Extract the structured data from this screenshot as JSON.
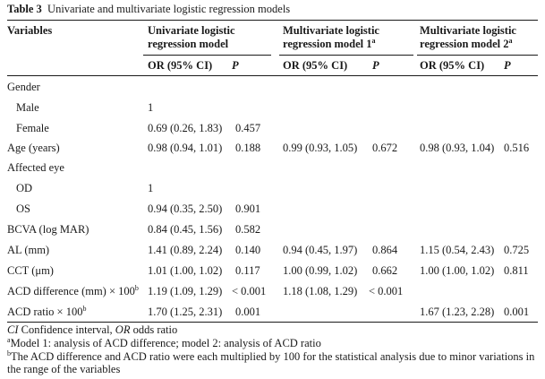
{
  "caption": {
    "label": "Table 3",
    "title": "Univariate and multivariate logistic regression models"
  },
  "headers": {
    "variables": "Variables",
    "groups": [
      {
        "line1": "Univariate logistic",
        "line2": "regression model",
        "sup": ""
      },
      {
        "line1": "Multivariate logistic",
        "line2": "regression model 1",
        "sup": "a"
      },
      {
        "line1": "Multivariate logistic",
        "line2": "regression model 2",
        "sup": "a"
      }
    ],
    "or_label": "OR (95% CI)",
    "p_label": "P"
  },
  "rows": [
    {
      "variable": "Gender",
      "sup": "",
      "u_or": "",
      "u_p": "",
      "m1_or": "",
      "m1_p": "",
      "m2_or": "",
      "m2_p": ""
    },
    {
      "variable": "Male",
      "sup": "",
      "u_or": "1",
      "u_p": "",
      "m1_or": "",
      "m1_p": "",
      "m2_or": "",
      "m2_p": ""
    },
    {
      "variable": "Female",
      "sup": "",
      "u_or": "0.69 (0.26, 1.83)",
      "u_p": "0.457",
      "m1_or": "",
      "m1_p": "",
      "m2_or": "",
      "m2_p": ""
    },
    {
      "variable": "Age (years)",
      "sup": "",
      "u_or": "0.98 (0.94, 1.01)",
      "u_p": "0.188",
      "m1_or": "0.99 (0.93, 1.05)",
      "m1_p": "0.672",
      "m2_or": "0.98 (0.93, 1.04)",
      "m2_p": "0.516"
    },
    {
      "variable": "Affected eye",
      "sup": "",
      "u_or": "",
      "u_p": "",
      "m1_or": "",
      "m1_p": "",
      "m2_or": "",
      "m2_p": ""
    },
    {
      "variable": "OD",
      "sup": "",
      "u_or": "1",
      "u_p": "",
      "m1_or": "",
      "m1_p": "",
      "m2_or": "",
      "m2_p": ""
    },
    {
      "variable": "OS",
      "sup": "",
      "u_or": "0.94 (0.35, 2.50)",
      "u_p": "0.901",
      "m1_or": "",
      "m1_p": "",
      "m2_or": "",
      "m2_p": ""
    },
    {
      "variable": "BCVA (log MAR)",
      "sup": "",
      "u_or": "0.84 (0.45, 1.56)",
      "u_p": "0.582",
      "m1_or": "",
      "m1_p": "",
      "m2_or": "",
      "m2_p": ""
    },
    {
      "variable": "AL (mm)",
      "sup": "",
      "u_or": "1.41 (0.89, 2.24)",
      "u_p": "0.140",
      "m1_or": "0.94 (0.45, 1.97)",
      "m1_p": "0.864",
      "m2_or": "1.15 (0.54, 2.43)",
      "m2_p": "0.725"
    },
    {
      "variable": "CCT (μm)",
      "sup": "",
      "u_or": "1.01 (1.00, 1.02)",
      "u_p": "0.117",
      "m1_or": "1.00 (0.99, 1.02)",
      "m1_p": "0.662",
      "m2_or": "1.00 (1.00, 1.02)",
      "m2_p": "0.811"
    },
    {
      "variable": "ACD difference (mm) × 100",
      "sup": "b",
      "u_or": "1.19 (1.09, 1.29)",
      "u_p": "< 0.001",
      "m1_or": "1.18 (1.08, 1.29)",
      "m1_p": "< 0.001",
      "m2_or": "",
      "m2_p": ""
    },
    {
      "variable": "ACD ratio × 100",
      "sup": "b",
      "u_or": "1.70 (1.25, 2.31)",
      "u_p": "0.001",
      "m1_or": "",
      "m1_p": "",
      "m2_or": "1.67 (1.23, 2.28)",
      "m2_p": "0.001"
    }
  ],
  "footnotes": {
    "abbrev": {
      "ci": "CI",
      "ci_text": " Confidence interval, ",
      "or": "OR",
      "or_text": " odds ratio"
    },
    "note_a": {
      "mark": "a",
      "text": "Model 1: analysis of ACD difference; model 2: analysis of ACD ratio"
    },
    "note_b": {
      "mark": "b",
      "text": "The ACD difference and ACD ratio were each multiplied by 100 for the statistical analysis due to minor variations in the range of the variables"
    }
  }
}
